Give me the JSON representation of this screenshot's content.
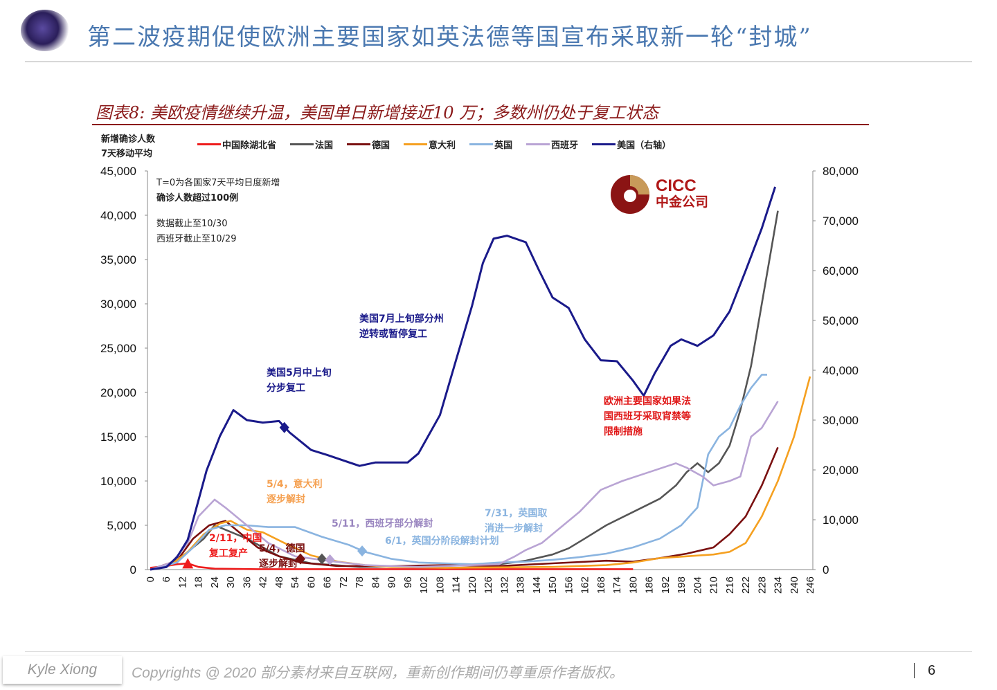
{
  "header": {
    "title": "第二波疫期促使欧洲主要国家如英法德等国宣布采取新一轮“封城”",
    "icon": "galaxy-orb-icon"
  },
  "footer": {
    "author": "Kyle Xiong",
    "copyright": "Copyrights @ 2020 部分素材来自互联网，重新创作期间仍尊重原作者版权。",
    "page": "6"
  },
  "logo": {
    "en": "CICC",
    "cn": "中金公司"
  },
  "chart_data": {
    "type": "line",
    "title": "图表8: 美欧疫情继续升温，美国单日新增接近10 万；多数州仍处于复工状态",
    "ylabel": [
      "新增确诊人数",
      "7天移动平均"
    ],
    "xlim": [
      0,
      246
    ],
    "ylim": [
      0,
      45000
    ],
    "y2lim": [
      0,
      80000
    ],
    "yticks": [
      "0",
      "5,000",
      "10,000",
      "15,000",
      "20,000",
      "25,000",
      "30,000",
      "35,000",
      "40,000",
      "45,000"
    ],
    "y2ticks": [
      "0",
      "10,000",
      "20,000",
      "30,000",
      "40,000",
      "50,000",
      "60,000",
      "70,000",
      "80,000"
    ],
    "notes": [
      "T=0为各国家7天平均日度新增",
      "确诊人数超过100例",
      "数据截止至10/30",
      "西班牙截止至10/29"
    ],
    "series": [
      {
        "name": "中国除湖北省",
        "color": "#ee1c1c",
        "axis": "left",
        "points": [
          [
            0,
            200
          ],
          [
            6,
            400
          ],
          [
            10,
            600
          ],
          [
            14,
            700
          ],
          [
            18,
            300
          ],
          [
            24,
            100
          ],
          [
            40,
            50
          ],
          [
            180,
            50
          ]
        ]
      },
      {
        "name": "法国",
        "color": "#555555",
        "axis": "left",
        "points": [
          [
            0,
            0
          ],
          [
            6,
            300
          ],
          [
            12,
            1500
          ],
          [
            20,
            3500
          ],
          [
            24,
            5000
          ],
          [
            28,
            4500
          ],
          [
            36,
            3500
          ],
          [
            42,
            2500
          ],
          [
            48,
            1500
          ],
          [
            60,
            700
          ],
          [
            78,
            300
          ],
          [
            100,
            400
          ],
          [
            120,
            500
          ],
          [
            130,
            600
          ],
          [
            140,
            1000
          ],
          [
            150,
            1700
          ],
          [
            156,
            2400
          ],
          [
            162,
            3500
          ],
          [
            170,
            5000
          ],
          [
            180,
            6500
          ],
          [
            190,
            8000
          ],
          [
            196,
            9500
          ],
          [
            200,
            11000
          ],
          [
            204,
            12000
          ],
          [
            208,
            11000
          ],
          [
            212,
            12000
          ],
          [
            216,
            14000
          ],
          [
            220,
            18000
          ],
          [
            224,
            23000
          ],
          [
            228,
            30000
          ],
          [
            232,
            37000
          ],
          [
            234,
            40500
          ]
        ]
      },
      {
        "name": "德国",
        "color": "#7a1010",
        "axis": "left",
        "points": [
          [
            0,
            0
          ],
          [
            10,
            1000
          ],
          [
            16,
            3500
          ],
          [
            22,
            5000
          ],
          [
            28,
            5500
          ],
          [
            34,
            4000
          ],
          [
            40,
            2500
          ],
          [
            48,
            1500
          ],
          [
            56,
            800
          ],
          [
            70,
            400
          ],
          [
            90,
            400
          ],
          [
            110,
            500
          ],
          [
            130,
            400
          ],
          [
            150,
            700
          ],
          [
            170,
            1000
          ],
          [
            180,
            900
          ],
          [
            190,
            1300
          ],
          [
            200,
            1800
          ],
          [
            210,
            2500
          ],
          [
            216,
            4000
          ],
          [
            222,
            6000
          ],
          [
            228,
            9500
          ],
          [
            234,
            13800
          ]
        ]
      },
      {
        "name": "意大利",
        "color": "#f5a020",
        "axis": "left",
        "points": [
          [
            0,
            0
          ],
          [
            8,
            600
          ],
          [
            14,
            2000
          ],
          [
            20,
            4000
          ],
          [
            26,
            5200
          ],
          [
            30,
            5500
          ],
          [
            36,
            4500
          ],
          [
            42,
            4200
          ],
          [
            50,
            3000
          ],
          [
            60,
            1600
          ],
          [
            70,
            900
          ],
          [
            80,
            500
          ],
          [
            90,
            300
          ],
          [
            110,
            200
          ],
          [
            130,
            250
          ],
          [
            150,
            300
          ],
          [
            170,
            500
          ],
          [
            180,
            800
          ],
          [
            190,
            1300
          ],
          [
            200,
            1500
          ],
          [
            210,
            1700
          ],
          [
            216,
            2000
          ],
          [
            222,
            3000
          ],
          [
            228,
            6000
          ],
          [
            234,
            10000
          ],
          [
            240,
            15000
          ],
          [
            246,
            21800
          ]
        ]
      },
      {
        "name": "英国",
        "color": "#8ab4e0",
        "axis": "left",
        "points": [
          [
            0,
            0
          ],
          [
            10,
            800
          ],
          [
            16,
            2500
          ],
          [
            22,
            4500
          ],
          [
            28,
            5000
          ],
          [
            36,
            5000
          ],
          [
            44,
            4800
          ],
          [
            54,
            4800
          ],
          [
            64,
            3700
          ],
          [
            74,
            2800
          ],
          [
            80,
            2000
          ],
          [
            90,
            1200
          ],
          [
            100,
            800
          ],
          [
            110,
            700
          ],
          [
            120,
            600
          ],
          [
            130,
            800
          ],
          [
            140,
            900
          ],
          [
            150,
            1100
          ],
          [
            160,
            1400
          ],
          [
            170,
            1800
          ],
          [
            180,
            2500
          ],
          [
            190,
            3500
          ],
          [
            198,
            5000
          ],
          [
            204,
            7000
          ],
          [
            208,
            13000
          ],
          [
            212,
            15000
          ],
          [
            216,
            16000
          ],
          [
            220,
            18500
          ],
          [
            224,
            20500
          ],
          [
            228,
            22000
          ],
          [
            230,
            22000
          ]
        ]
      },
      {
        "name": "西班牙",
        "color": "#b9a4d4",
        "axis": "left",
        "points": [
          [
            0,
            0
          ],
          [
            8,
            800
          ],
          [
            14,
            3000
          ],
          [
            18,
            6000
          ],
          [
            24,
            7900
          ],
          [
            28,
            7000
          ],
          [
            36,
            5000
          ],
          [
            44,
            3000
          ],
          [
            54,
            1500
          ],
          [
            66,
            1000
          ],
          [
            80,
            500
          ],
          [
            100,
            300
          ],
          [
            120,
            500
          ],
          [
            130,
            600
          ],
          [
            136,
            1500
          ],
          [
            140,
            2200
          ],
          [
            146,
            3000
          ],
          [
            152,
            4500
          ],
          [
            160,
            6500
          ],
          [
            168,
            9000
          ],
          [
            176,
            10000
          ],
          [
            186,
            11000
          ],
          [
            196,
            12000
          ],
          [
            200,
            11500
          ],
          [
            206,
            10500
          ],
          [
            210,
            9500
          ],
          [
            216,
            10000
          ],
          [
            220,
            10500
          ],
          [
            224,
            15000
          ],
          [
            228,
            16000
          ],
          [
            232,
            18000
          ],
          [
            234,
            19000
          ]
        ]
      },
      {
        "name": "美国（右轴）",
        "color": "#1a1a8a",
        "axis": "right",
        "points": [
          [
            0,
            0
          ],
          [
            6,
            500
          ],
          [
            10,
            2500
          ],
          [
            14,
            6000
          ],
          [
            21,
            19900
          ],
          [
            26,
            26800
          ],
          [
            31,
            32000
          ],
          [
            36,
            30000
          ],
          [
            42,
            29500
          ],
          [
            48,
            29800
          ],
          [
            52,
            27500
          ],
          [
            60,
            24000
          ],
          [
            66,
            23000
          ],
          [
            78,
            20800
          ],
          [
            84,
            21500
          ],
          [
            96,
            21500
          ],
          [
            100,
            23300
          ],
          [
            108,
            31000
          ],
          [
            114,
            42000
          ],
          [
            120,
            53000
          ],
          [
            124,
            61500
          ],
          [
            128,
            66400
          ],
          [
            133,
            67000
          ],
          [
            140,
            65700
          ],
          [
            145,
            60000
          ],
          [
            150,
            54600
          ],
          [
            156,
            52500
          ],
          [
            162,
            46200
          ],
          [
            168,
            42000
          ],
          [
            174,
            41800
          ],
          [
            180,
            37900
          ],
          [
            184,
            34900
          ],
          [
            188,
            39300
          ],
          [
            194,
            44900
          ],
          [
            198,
            46200
          ],
          [
            204,
            44900
          ],
          [
            210,
            47000
          ],
          [
            216,
            51800
          ],
          [
            222,
            60000
          ],
          [
            228,
            68500
          ],
          [
            233,
            76800
          ]
        ]
      }
    ],
    "markers": [
      {
        "series": "中国除湖北省",
        "x": 14,
        "y": 600,
        "shape": "triangle",
        "color": "#ee1c1c"
      },
      {
        "series": "德国",
        "x": 56,
        "y": 1200,
        "shape": "diamond",
        "color": "#7a1010"
      },
      {
        "series": "法国",
        "x": 64,
        "y": 1200,
        "shape": "diamond",
        "color": "#555555"
      },
      {
        "series": "西班牙",
        "x": 67,
        "y": 1100,
        "shape": "diamond",
        "color": "#b9a4d4"
      },
      {
        "series": "英国",
        "x": 79,
        "y": 2100,
        "shape": "diamond",
        "color": "#8ab4e0"
      },
      {
        "series": "美国（右轴）",
        "x": 50,
        "y": 28500,
        "shape": "diamond",
        "color": "#1a1a8a"
      }
    ],
    "annotations": [
      {
        "lines": [
          "美国5月中上旬",
          "分步复工"
        ],
        "color": "#1a1a8a"
      },
      {
        "lines": [
          "美国7月上旬部分州",
          "逆转或暂停复工"
        ],
        "color": "#1a1a8a"
      },
      {
        "lines": [
          "欧洲主要国家如果法",
          "国西班牙采取宵禁等",
          "限制措施"
        ],
        "color": "#e01818"
      },
      {
        "lines": [
          "5/4，意大利",
          "逐步解封"
        ],
        "color": "#f5a050"
      },
      {
        "lines": [
          "5/11，西班牙部分解封"
        ],
        "color": "#9a86c0"
      },
      {
        "lines": [
          "7/31，英国取",
          "消进一步解封"
        ],
        "color": "#8ab4e0"
      },
      {
        "lines": [
          "6/1，英国分阶段解封计划"
        ],
        "color": "#8ab4e0"
      },
      {
        "lines": [
          "2/11，中国",
          "复工复产"
        ],
        "color": "#ee1c1c"
      },
      {
        "lines": [
          "5/4，德国",
          "逐步解封"
        ],
        "color": "#7a1010"
      }
    ]
  }
}
